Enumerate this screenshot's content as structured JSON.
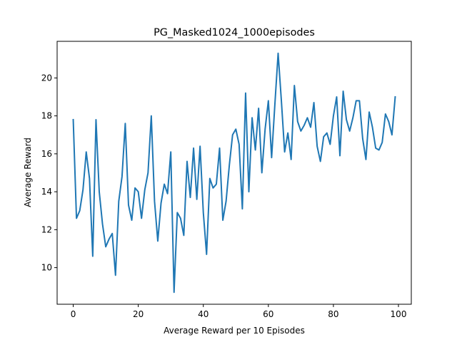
{
  "chart_data": {
    "type": "line",
    "title": "PG_Masked1024_1000episodes",
    "xlabel": "Average Reward per 10 Episodes",
    "ylabel": "Average Reward",
    "xlim": [
      -4.95,
      103.95
    ],
    "ylim": [
      8.07,
      21.93
    ],
    "xticks": [
      0,
      20,
      40,
      60,
      80,
      100
    ],
    "yticks": [
      10,
      12,
      14,
      16,
      18,
      20
    ],
    "grid": false,
    "line_color": "#1f77b4",
    "series": [
      {
        "x": [
          0,
          1,
          2,
          3,
          4,
          5,
          6,
          7,
          8,
          9,
          10,
          11,
          12,
          13,
          14,
          15,
          16,
          17,
          18,
          19,
          20,
          21,
          22,
          23,
          24,
          25,
          26,
          27,
          28,
          29,
          30,
          31,
          32,
          33,
          34,
          35,
          36,
          37,
          38,
          39,
          40,
          41,
          42,
          43,
          44,
          45,
          46,
          47,
          48,
          49,
          50,
          51,
          52,
          53,
          54,
          55,
          56,
          57,
          58,
          59,
          60,
          61,
          62,
          63,
          64,
          65,
          66,
          67,
          68,
          69,
          70,
          71,
          72,
          73,
          74,
          75,
          76,
          77,
          78,
          79,
          80,
          81,
          82,
          83,
          84,
          85,
          86,
          87,
          88,
          89,
          90,
          91,
          92,
          93,
          94,
          95,
          96,
          97,
          98,
          99
        ],
        "values": [
          17.8,
          12.6,
          13.0,
          14.1,
          16.1,
          14.7,
          10.6,
          17.8,
          14.0,
          12.3,
          11.1,
          11.5,
          11.8,
          9.6,
          13.5,
          14.8,
          17.6,
          13.3,
          12.5,
          14.2,
          14.0,
          12.6,
          14.1,
          15.0,
          18.0,
          13.5,
          11.4,
          13.4,
          14.4,
          13.9,
          16.1,
          8.7,
          12.9,
          12.6,
          11.7,
          15.6,
          13.7,
          16.3,
          13.6,
          16.4,
          12.9,
          10.7,
          14.7,
          14.2,
          14.4,
          16.3,
          12.5,
          13.5,
          15.4,
          17.0,
          17.3,
          16.5,
          13.1,
          19.2,
          14.0,
          17.9,
          16.2,
          18.4,
          15.0,
          17.3,
          18.8,
          15.8,
          18.6,
          21.3,
          18.8,
          16.1,
          17.1,
          15.7,
          19.6,
          17.7,
          17.2,
          17.5,
          17.9,
          17.4,
          18.7,
          16.4,
          15.6,
          16.9,
          17.1,
          16.5,
          18.0,
          19.0,
          15.9,
          19.3,
          17.8,
          17.2,
          17.9,
          18.8,
          18.8,
          16.8,
          15.7,
          18.2,
          17.4,
          16.3,
          16.2,
          16.6,
          18.1,
          17.7,
          17.0,
          19.0
        ]
      }
    ]
  }
}
